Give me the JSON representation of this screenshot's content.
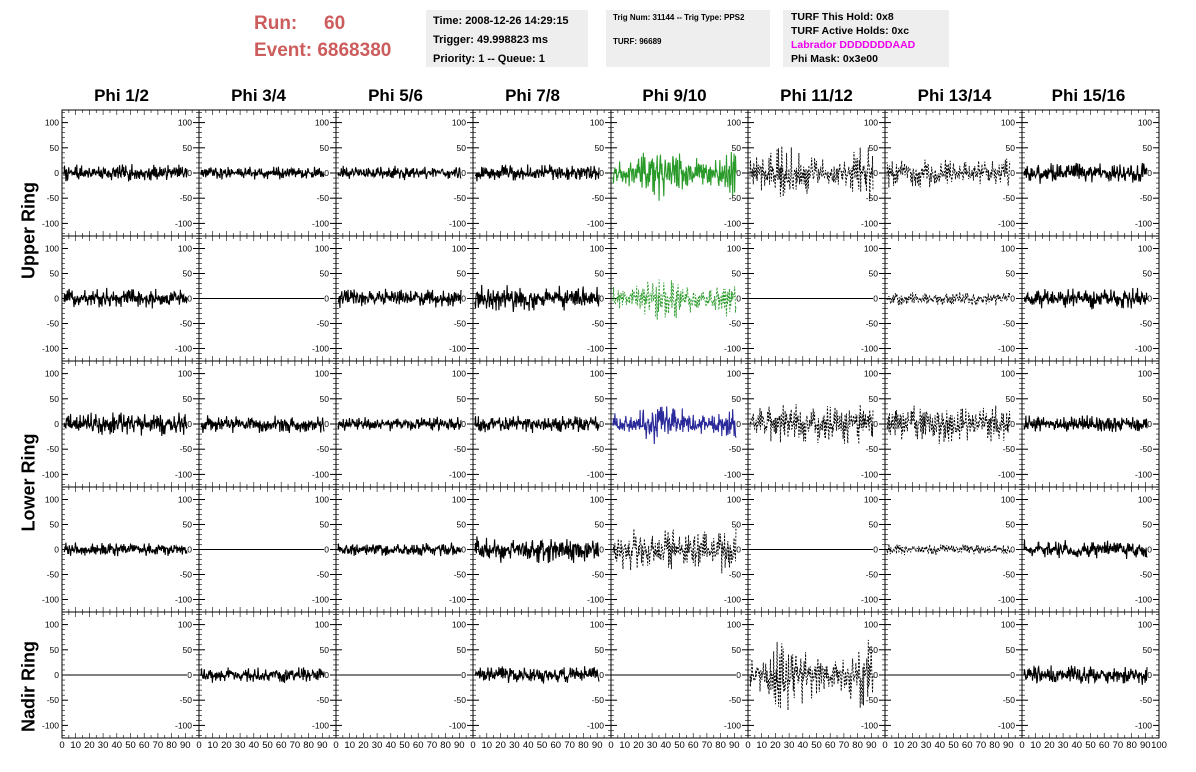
{
  "header": {
    "run_label": "Run:",
    "run_value": "60",
    "event_label": "Event:",
    "event_value": "6868380"
  },
  "info_time": {
    "line1": "Time: 2008-12-26 14:29:15",
    "line2": "Trigger: 49.998823 ms",
    "line3": "Priority: 1 -- Queue: 1"
  },
  "info_trig": {
    "line1": "Trig Num: 31144 -- Trig Type: PPS2",
    "line2": "TURF: 96689"
  },
  "info_turf": {
    "line1": "TURF This Hold: 0x8",
    "line2": "TURF Active Holds: 0xc",
    "line3": "Labrador DDDDDDDAAD",
    "line4": "Phi Mask: 0x3e00"
  },
  "colors": {
    "green": "#2a9a2a",
    "blue": "#2a2a9a",
    "black": "#000000",
    "magenta": "#ee00ee",
    "run_red": "#cd5c5c"
  },
  "chart_data": {
    "type": "line",
    "columns": [
      "Phi 1/2",
      "Phi 3/4",
      "Phi 5/6",
      "Phi 7/8",
      "Phi 9/10",
      "Phi 11/12",
      "Phi 13/14",
      "Phi 15/16"
    ],
    "rows": [
      "Upper Ring",
      "Upper Ring",
      "Lower Ring",
      "Lower Ring",
      "Nadir Ring"
    ],
    "ylim": [
      -125,
      125
    ],
    "yticks": [
      -100,
      -50,
      0,
      50,
      100
    ],
    "xlim": [
      0,
      100
    ],
    "xticks": [
      0,
      10,
      20,
      30,
      40,
      50,
      60,
      70,
      80,
      90,
      100
    ],
    "panels": [
      [
        {
          "c": "black",
          "a": 18
        },
        {
          "c": "black",
          "a": 14
        },
        {
          "c": "black",
          "a": 15
        },
        {
          "c": "black",
          "a": 18
        },
        {
          "c": "green",
          "a": 60,
          "env": 1
        },
        {
          "c": "black",
          "a": 60,
          "d": 1,
          "env": 1
        },
        {
          "c": "black",
          "a": 30,
          "d": 1
        },
        {
          "c": "black",
          "a": 22
        }
      ],
      [
        {
          "c": "black",
          "a": 22
        },
        {
          "c": "black",
          "a": 0
        },
        {
          "c": "black",
          "a": 20
        },
        {
          "c": "black",
          "a": 28
        },
        {
          "c": "green",
          "a": 50,
          "d": 1,
          "env": 1
        },
        {
          "c": "black",
          "a": 0
        },
        {
          "c": "black",
          "a": 15,
          "d": 1
        },
        {
          "c": "black",
          "a": 22
        }
      ],
      [
        {
          "c": "black",
          "a": 25
        },
        {
          "c": "black",
          "a": 18
        },
        {
          "c": "black",
          "a": 15
        },
        {
          "c": "black",
          "a": 18
        },
        {
          "c": "blue",
          "a": 45,
          "env": 1
        },
        {
          "c": "black",
          "a": 42,
          "d": 1
        },
        {
          "c": "black",
          "a": 40,
          "d": 1
        },
        {
          "c": "black",
          "a": 18
        }
      ],
      [
        {
          "c": "black",
          "a": 14
        },
        {
          "c": "black",
          "a": 0
        },
        {
          "c": "black",
          "a": 14
        },
        {
          "c": "black",
          "a": 28
        },
        {
          "c": "black",
          "a": 48,
          "d": 1
        },
        {
          "c": "black",
          "a": 0
        },
        {
          "c": "black",
          "a": 12,
          "d": 1
        },
        {
          "c": "black",
          "a": 20
        }
      ],
      [
        {
          "c": "black",
          "a": 0
        },
        {
          "c": "black",
          "a": 16
        },
        {
          "c": "black",
          "a": 0
        },
        {
          "c": "black",
          "a": 18
        },
        {
          "c": "black",
          "a": 0
        },
        {
          "c": "black",
          "a": 75,
          "d": 1,
          "env": 1
        },
        {
          "c": "black",
          "a": 0
        },
        {
          "c": "black",
          "a": 20
        }
      ]
    ]
  },
  "labels": {
    "phi_headers": [
      "Phi 1/2",
      "Phi 3/4",
      "Phi 5/6",
      "Phi 7/8",
      "Phi 9/10",
      "Phi 11/12",
      "Phi 13/14",
      "Phi 15/16"
    ],
    "ring_upper": "Upper Ring",
    "ring_lower": "Lower Ring",
    "ring_nadir": "Nadir Ring"
  }
}
